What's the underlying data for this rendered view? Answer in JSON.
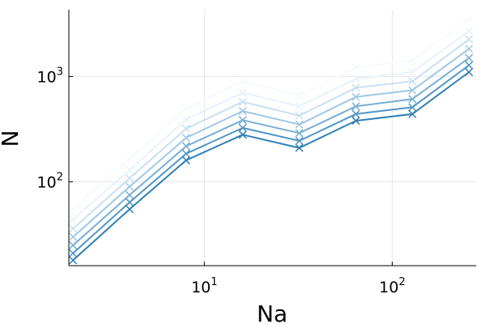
{
  "chart_data": {
    "type": "line",
    "xlabel": "Na",
    "ylabel": "N",
    "xscale": "log",
    "yscale": "log",
    "xlim": [
      1.9,
      280
    ],
    "ylim": [
      16,
      4300
    ],
    "grid": true,
    "legend": "none",
    "x": [
      2,
      4,
      8,
      16,
      32,
      64,
      128,
      256
    ],
    "marker": "x",
    "x_ticks": [
      {
        "value": 10,
        "base": "10",
        "exp": "1"
      },
      {
        "value": 100,
        "base": "10",
        "exp": "2"
      }
    ],
    "y_ticks": [
      {
        "value": 100,
        "base": "10",
        "exp": "2"
      },
      {
        "value": 1000,
        "base": "10",
        "exp": "3"
      }
    ],
    "series": [
      {
        "color": "#2f7fb6",
        "values": [
          18,
          55,
          160,
          280,
          210,
          380,
          440,
          1100
        ]
      },
      {
        "color": "#4f96c8",
        "values": [
          21,
          64,
          185,
          325,
          245,
          440,
          510,
          1280
        ]
      },
      {
        "color": "#75aed6",
        "values": [
          25,
          75,
          218,
          385,
          290,
          520,
          610,
          1500
        ]
      },
      {
        "color": "#9ec8e6",
        "values": [
          30,
          90,
          262,
          470,
          350,
          640,
          740,
          1830
        ]
      },
      {
        "color": "#c8e0f2",
        "values": [
          36,
          108,
          320,
          575,
          425,
          780,
          900,
          2250
        ]
      },
      {
        "color": "#e8f2fa",
        "values": [
          44,
          130,
          390,
          700,
          520,
          950,
          1100,
          2700
        ]
      },
      {
        "color": "#f6fafd",
        "values": [
          55,
          165,
          500,
          900,
          660,
          1220,
          1420,
          3500
        ]
      }
    ]
  }
}
